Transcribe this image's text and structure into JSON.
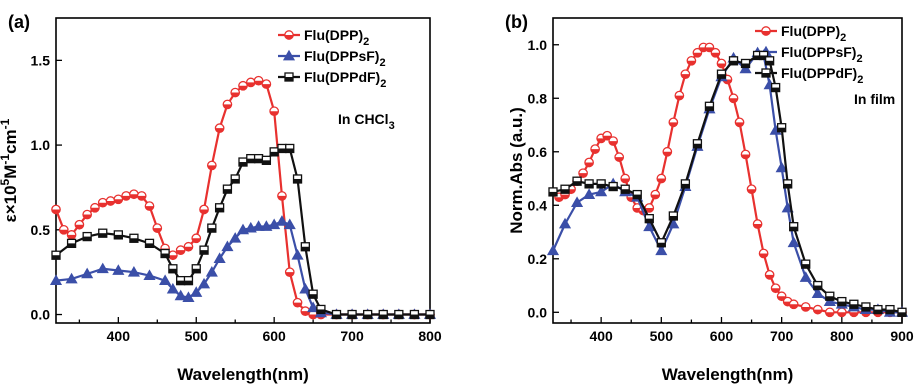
{
  "chart_data": [
    {
      "type": "line",
      "panel_label": "(a)",
      "xlabel": "Wavelength(nm)",
      "ylabel_parts": [
        "ε×10",
        "5",
        "M",
        "-1",
        "cm",
        "-1"
      ],
      "xlim": [
        320,
        800
      ],
      "ylim": [
        -0.05,
        1.75
      ],
      "xticks": [
        400,
        500,
        600,
        700,
        800
      ],
      "xtick_labels": [
        "400",
        "500",
        "600",
        "700",
        "800"
      ],
      "yticks": [
        0.0,
        0.5,
        1.0,
        1.5
      ],
      "ytick_labels": [
        "0.0",
        "0.5",
        "1.0",
        "1.5"
      ],
      "annotation_parts": [
        "In CHCl",
        "3"
      ],
      "grid": false,
      "legend_position": "top-right",
      "series": [
        {
          "name_parts": [
            "Flu(DPP)",
            "2"
          ],
          "color": "#e8312f",
          "marker": "half-circle",
          "x": [
            320,
            330,
            340,
            350,
            360,
            370,
            380,
            390,
            400,
            410,
            420,
            430,
            440,
            450,
            460,
            470,
            480,
            490,
            500,
            510,
            520,
            530,
            540,
            550,
            560,
            570,
            580,
            590,
            600,
            610,
            620,
            630,
            640,
            650,
            660,
            680,
            700,
            720,
            740,
            760,
            780,
            800
          ],
          "y": [
            0.62,
            0.5,
            0.47,
            0.53,
            0.59,
            0.63,
            0.66,
            0.67,
            0.68,
            0.7,
            0.71,
            0.7,
            0.64,
            0.51,
            0.39,
            0.35,
            0.38,
            0.4,
            0.45,
            0.62,
            0.88,
            1.1,
            1.24,
            1.31,
            1.35,
            1.37,
            1.38,
            1.36,
            1.2,
            0.7,
            0.25,
            0.07,
            0.02,
            0.0,
            0.0,
            0.0,
            0.0,
            0.0,
            0.0,
            0.0,
            0.0,
            0.0
          ]
        },
        {
          "name_parts": [
            "Flu(DPPsF)",
            "2"
          ],
          "color": "#3b4fa8",
          "marker": "triangle",
          "x": [
            320,
            340,
            360,
            380,
            400,
            420,
            440,
            460,
            470,
            480,
            490,
            500,
            510,
            520,
            530,
            540,
            550,
            560,
            570,
            580,
            590,
            600,
            610,
            620,
            630,
            640,
            650,
            660,
            680,
            700,
            720,
            740,
            760,
            780,
            800
          ],
          "y": [
            0.2,
            0.21,
            0.24,
            0.27,
            0.26,
            0.25,
            0.23,
            0.2,
            0.15,
            0.11,
            0.1,
            0.13,
            0.18,
            0.25,
            0.33,
            0.4,
            0.45,
            0.5,
            0.51,
            0.52,
            0.52,
            0.53,
            0.55,
            0.53,
            0.35,
            0.15,
            0.04,
            0.01,
            0.0,
            0.0,
            0.0,
            0.0,
            0.0,
            0.0,
            0.0
          ]
        },
        {
          "name_parts": [
            "Flu(DPPdF)",
            "2"
          ],
          "color": "#111111",
          "marker": "half-square",
          "x": [
            320,
            340,
            360,
            380,
            400,
            420,
            440,
            460,
            470,
            480,
            490,
            500,
            510,
            520,
            530,
            540,
            550,
            560,
            570,
            580,
            590,
            600,
            610,
            620,
            630,
            640,
            650,
            660,
            680,
            700,
            720,
            740,
            760,
            780,
            800
          ],
          "y": [
            0.35,
            0.42,
            0.46,
            0.48,
            0.47,
            0.45,
            0.42,
            0.36,
            0.27,
            0.2,
            0.2,
            0.27,
            0.38,
            0.51,
            0.63,
            0.74,
            0.8,
            0.9,
            0.92,
            0.92,
            0.91,
            0.96,
            0.98,
            0.98,
            0.8,
            0.4,
            0.12,
            0.03,
            0.0,
            0.0,
            0.0,
            0.0,
            0.0,
            0.0,
            0.0
          ]
        }
      ]
    },
    {
      "type": "line",
      "panel_label": "(b)",
      "xlabel": "Wavelength(nm)",
      "ylabel": "Norm.Abs (a.u.)",
      "xlim": [
        320,
        900
      ],
      "ylim": [
        -0.04,
        1.1
      ],
      "xticks": [
        400,
        500,
        600,
        700,
        800,
        900
      ],
      "xtick_labels": [
        "400",
        "500",
        "600",
        "700",
        "800",
        "900"
      ],
      "yticks": [
        0.0,
        0.2,
        0.4,
        0.6,
        0.8,
        1.0
      ],
      "ytick_labels": [
        "0.0",
        "0.2",
        "0.4",
        "0.6",
        "0.8",
        "1.0"
      ],
      "annotation_parts": [
        "In film",
        ""
      ],
      "grid": false,
      "legend_position": "top-right",
      "series": [
        {
          "name_parts": [
            "Flu(DPP)",
            "2"
          ],
          "color": "#e8312f",
          "marker": "half-circle",
          "x": [
            330,
            340,
            350,
            360,
            370,
            380,
            390,
            400,
            410,
            420,
            430,
            440,
            450,
            460,
            470,
            480,
            490,
            500,
            510,
            520,
            530,
            540,
            550,
            560,
            570,
            580,
            590,
            600,
            610,
            620,
            630,
            640,
            650,
            660,
            670,
            680,
            690,
            700,
            710,
            720,
            740,
            760,
            780,
            800,
            820,
            840,
            860,
            880,
            900
          ],
          "y": [
            0.43,
            0.44,
            0.46,
            0.49,
            0.52,
            0.56,
            0.61,
            0.65,
            0.66,
            0.64,
            0.58,
            0.5,
            0.43,
            0.39,
            0.38,
            0.39,
            0.44,
            0.5,
            0.6,
            0.71,
            0.81,
            0.89,
            0.94,
            0.97,
            0.99,
            0.99,
            0.97,
            0.93,
            0.87,
            0.8,
            0.71,
            0.59,
            0.46,
            0.33,
            0.22,
            0.14,
            0.09,
            0.06,
            0.04,
            0.03,
            0.02,
            0.01,
            0.0,
            0.0,
            0.0,
            0.0,
            0.0,
            0.0,
            0.0
          ]
        },
        {
          "name_parts": [
            "Flu(DPPsF)",
            "2"
          ],
          "color": "#3b4fa8",
          "marker": "triangle",
          "x": [
            320,
            340,
            360,
            380,
            400,
            420,
            440,
            460,
            480,
            500,
            520,
            540,
            560,
            580,
            600,
            620,
            640,
            660,
            670,
            680,
            690,
            700,
            710,
            720,
            740,
            760,
            780,
            800,
            820,
            840,
            860,
            880,
            900
          ],
          "y": [
            0.23,
            0.33,
            0.41,
            0.44,
            0.45,
            0.48,
            0.45,
            0.43,
            0.32,
            0.23,
            0.33,
            0.47,
            0.62,
            0.76,
            0.88,
            0.95,
            0.91,
            0.97,
            0.96,
            0.85,
            0.68,
            0.54,
            0.39,
            0.26,
            0.13,
            0.07,
            0.04,
            0.03,
            0.02,
            0.01,
            0.01,
            0.0,
            0.0
          ]
        },
        {
          "name_parts": [
            "Flu(DPPdF)",
            "2"
          ],
          "color": "#111111",
          "marker": "half-square",
          "x": [
            320,
            340,
            360,
            380,
            400,
            420,
            440,
            460,
            480,
            500,
            520,
            540,
            560,
            580,
            600,
            620,
            640,
            660,
            670,
            680,
            690,
            700,
            710,
            720,
            740,
            760,
            780,
            800,
            820,
            840,
            860,
            880,
            900
          ],
          "y": [
            0.45,
            0.46,
            0.49,
            0.48,
            0.48,
            0.47,
            0.46,
            0.44,
            0.35,
            0.26,
            0.36,
            0.48,
            0.63,
            0.77,
            0.89,
            0.94,
            0.93,
            0.96,
            0.96,
            0.94,
            0.84,
            0.69,
            0.48,
            0.32,
            0.18,
            0.1,
            0.06,
            0.04,
            0.03,
            0.02,
            0.01,
            0.01,
            0.0
          ]
        }
      ]
    }
  ]
}
